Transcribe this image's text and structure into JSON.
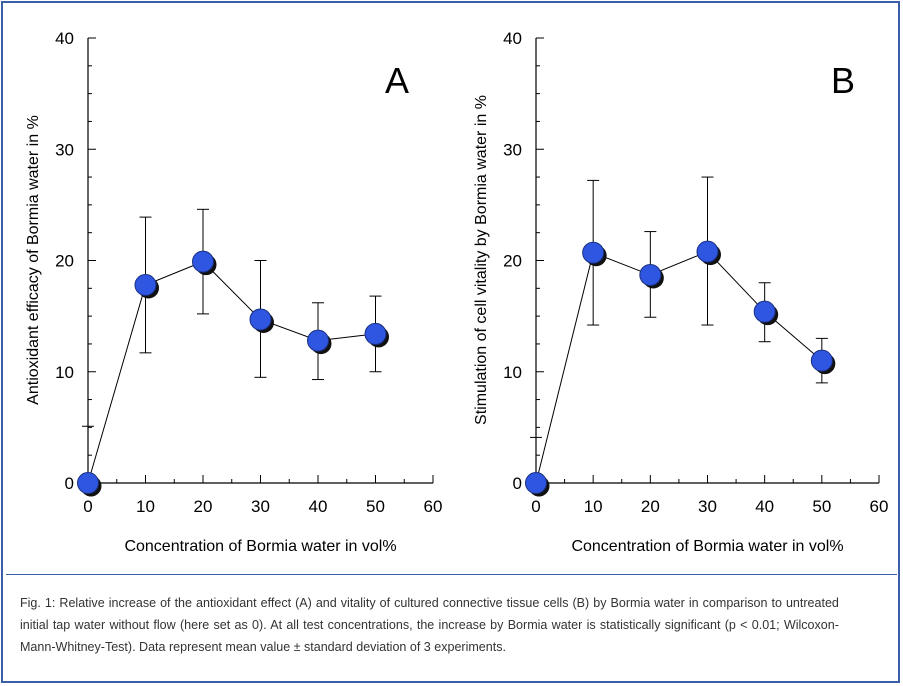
{
  "chart_data": [
    {
      "type": "scatter",
      "panel_label": "A",
      "ylabel": "Antioxidant efficacy of Bormia water in %",
      "xlabel": "Concentration of Bormia water in vol%",
      "xlim": [
        0,
        60
      ],
      "ylim": [
        0,
        40
      ],
      "xticks": [
        0,
        10,
        20,
        30,
        40,
        50,
        60
      ],
      "yticks": [
        0,
        10,
        20,
        30,
        40
      ],
      "x": [
        0,
        10,
        20,
        30,
        40,
        50
      ],
      "y": [
        0,
        17.8,
        19.9,
        14.7,
        12.8,
        13.4
      ],
      "yerr_upper": [
        5.1,
        23.9,
        24.6,
        20.0,
        16.2,
        16.8
      ],
      "yerr_lower": [
        null,
        11.7,
        15.2,
        9.5,
        9.3,
        10.0
      ],
      "marker_color": "#2f56e0",
      "grid": false
    },
    {
      "type": "scatter",
      "panel_label": "B",
      "ylabel": "Stimulation of cell vitality by Bormia water in %",
      "xlabel": "Concentration of Bormia water in vol%",
      "xlim": [
        0,
        60
      ],
      "ylim": [
        0,
        40
      ],
      "xticks": [
        0,
        10,
        20,
        30,
        40,
        50,
        60
      ],
      "yticks": [
        0,
        10,
        20,
        30,
        40
      ],
      "x": [
        0,
        10,
        20,
        30,
        40,
        50
      ],
      "y": [
        0,
        20.7,
        18.7,
        20.8,
        15.4,
        11.0
      ],
      "yerr_upper": [
        4.1,
        27.2,
        22.6,
        27.5,
        18.0,
        13.0
      ],
      "yerr_lower": [
        null,
        14.2,
        14.9,
        14.2,
        12.7,
        9.0
      ],
      "marker_color": "#2f56e0",
      "grid": false
    }
  ],
  "caption": "Fig. 1: Relative increase of the antioxidant effect (A) and vitality of cultured connective tissue cells (B) by Bormia water in comparison to untreated initial tap water without flow (here set as 0). At all test concentrations, the increase by Bormia water is statistically significant (p < 0.01; Wilcoxon-Mann-Whitney-Test). Data represent mean value ± standard deviation of 3 experiments.",
  "colors": {
    "frame": "#3a5fa8",
    "caption_text": "#333333"
  }
}
